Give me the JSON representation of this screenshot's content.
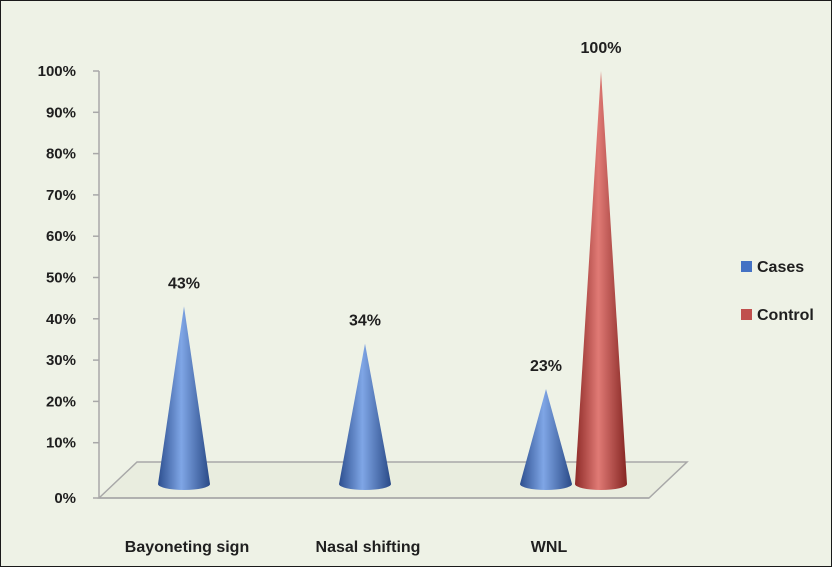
{
  "chart_data": {
    "type": "bar",
    "style": "3d-cone",
    "categories": [
      "Bayoneting sign",
      "Nasal shifting",
      "WNL"
    ],
    "series": [
      {
        "name": "Cases",
        "values": [
          43,
          34,
          23
        ],
        "labels": [
          "43%",
          "34%",
          "23%"
        ],
        "color": "#4472c4"
      },
      {
        "name": "Control",
        "values": [
          null,
          null,
          100
        ],
        "labels": [
          "",
          "",
          "100%"
        ],
        "color": "#c0504d"
      }
    ],
    "ylim": [
      0,
      100
    ],
    "yticks": [
      "0%",
      "10%",
      "20%",
      "30%",
      "40%",
      "50%",
      "60%",
      "70%",
      "80%",
      "90%",
      "100%"
    ],
    "legend_position": "right",
    "background": "#eef2e6"
  }
}
